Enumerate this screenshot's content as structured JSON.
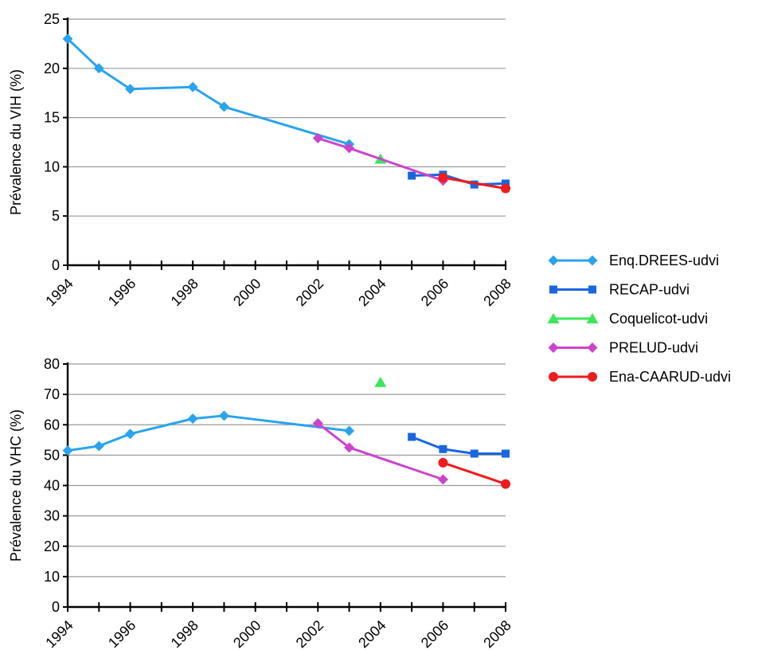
{
  "chart_data": [
    {
      "type": "line",
      "xlabel": "",
      "ylabel": "Prévalence du VIH (%)",
      "xlim": [
        1994,
        2008
      ],
      "ylim": [
        0,
        25
      ],
      "xticks": [
        1994,
        1996,
        1998,
        2000,
        2002,
        2004,
        2006,
        2008
      ],
      "yticks": [
        0,
        5,
        10,
        15,
        20,
        25
      ],
      "grid": true,
      "series": [
        {
          "name": "Enq.DREES-udvi",
          "color": "#29a3ee",
          "marker": "diamond",
          "x": [
            1994,
            1995,
            1996,
            1998,
            1999,
            2003
          ],
          "y": [
            23,
            20,
            17.9,
            18.1,
            16.1,
            12.3
          ]
        },
        {
          "name": "RECAP-udvi",
          "color": "#1a66e0",
          "marker": "square",
          "x": [
            2005,
            2006,
            2007,
            2008
          ],
          "y": [
            9.1,
            9.2,
            8.2,
            8.3
          ]
        },
        {
          "name": "Coquelicot-udvi",
          "color": "#3ee65a",
          "marker": "triangle",
          "x": [
            2004
          ],
          "y": [
            10.8
          ]
        },
        {
          "name": "PRELUD-udvi",
          "color": "#cc44cc",
          "marker": "diamond",
          "x": [
            2002,
            2003,
            2006
          ],
          "y": [
            12.9,
            11.9,
            8.6
          ]
        },
        {
          "name": "Ena-CAARUD-udvi",
          "color": "#ee1c1c",
          "marker": "circle",
          "x": [
            2006,
            2008
          ],
          "y": [
            8.9,
            7.8
          ]
        }
      ]
    },
    {
      "type": "line",
      "xlabel": "",
      "ylabel": "Prévalence du VHC (%)",
      "xlim": [
        1994,
        2008
      ],
      "ylim": [
        0,
        80
      ],
      "xticks": [
        1994,
        1996,
        1998,
        2000,
        2002,
        2004,
        2006,
        2008
      ],
      "yticks": [
        0,
        10,
        20,
        30,
        40,
        50,
        60,
        70,
        80
      ],
      "grid": true,
      "series": [
        {
          "name": "Enq.DREES-udvi",
          "color": "#29a3ee",
          "marker": "diamond",
          "x": [
            1994,
            1995,
            1996,
            1998,
            1999,
            2003
          ],
          "y": [
            51.5,
            53,
            57,
            62,
            63,
            58
          ]
        },
        {
          "name": "RECAP-udvi",
          "color": "#1a66e0",
          "marker": "square",
          "x": [
            2005,
            2006,
            2007,
            2008
          ],
          "y": [
            56,
            52,
            50.5,
            50.5
          ]
        },
        {
          "name": "Coquelicot-udvi",
          "color": "#3ee65a",
          "marker": "triangle",
          "x": [
            2004
          ],
          "y": [
            74
          ]
        },
        {
          "name": "PRELUD-udvi",
          "color": "#cc44cc",
          "marker": "diamond",
          "x": [
            2002,
            2003,
            2006
          ],
          "y": [
            60.5,
            52.5,
            42
          ]
        },
        {
          "name": "Ena-CAARUD-udvi",
          "color": "#ee1c1c",
          "marker": "circle",
          "x": [
            2006,
            2008
          ],
          "y": [
            47.5,
            40.5
          ]
        }
      ]
    }
  ],
  "legend": {
    "placement": "right",
    "items": [
      {
        "label": "Enq.DREES-udvi",
        "color": "#29a3ee",
        "marker": "diamond"
      },
      {
        "label": "RECAP-udvi",
        "color": "#1a66e0",
        "marker": "square"
      },
      {
        "label": "Coquelicot-udvi",
        "color": "#3ee65a",
        "marker": "triangle"
      },
      {
        "label": "PRELUD-udvi",
        "color": "#cc44cc",
        "marker": "diamond"
      },
      {
        "label": "Ena-CAARUD-udvi",
        "color": "#ee1c1c",
        "marker": "circle"
      }
    ]
  }
}
